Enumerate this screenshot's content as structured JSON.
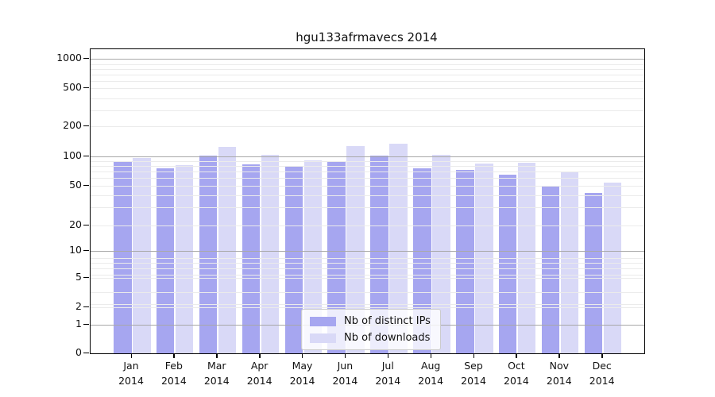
{
  "chart_data": {
    "type": "bar",
    "title": "hgu133afrmavecs 2014",
    "months": [
      "Jan",
      "Feb",
      "Mar",
      "Apr",
      "May",
      "Jun",
      "Jul",
      "Aug",
      "Sep",
      "Oct",
      "Nov",
      "Dec"
    ],
    "year": "2014",
    "categories": [
      "Jan 2014",
      "Feb 2014",
      "Mar 2014",
      "Apr 2014",
      "May 2014",
      "Jun 2014",
      "Jul 2014",
      "Aug 2014",
      "Sep 2014",
      "Oct 2014",
      "Nov 2014",
      "Dec 2014"
    ],
    "series": [
      {
        "name": "Nb of distinct IPs",
        "color": "#a6a6f0",
        "values": [
          87,
          75,
          101,
          83,
          79,
          87,
          101,
          76,
          73,
          65,
          50,
          42
        ]
      },
      {
        "name": "Nb of downloads",
        "color": "#d9d9f7",
        "values": [
          96,
          81,
          125,
          103,
          91,
          128,
          135,
          104,
          84,
          86,
          68,
          54
        ]
      }
    ],
    "ylabel": "",
    "xlabel": "",
    "yticks": [
      0,
      1,
      2,
      5,
      10,
      20,
      50,
      100,
      200,
      500,
      1000
    ],
    "yscale": "log-like (0,1,2,5 ... 1000)",
    "ylim": [
      0,
      1250
    ],
    "grid": true,
    "legend_position": "lower center",
    "colors": {
      "major_gridline": "#a8a8a8",
      "minor_gridline": "#ebebeb",
      "axis": "#000000",
      "background": "#ffffff"
    }
  }
}
